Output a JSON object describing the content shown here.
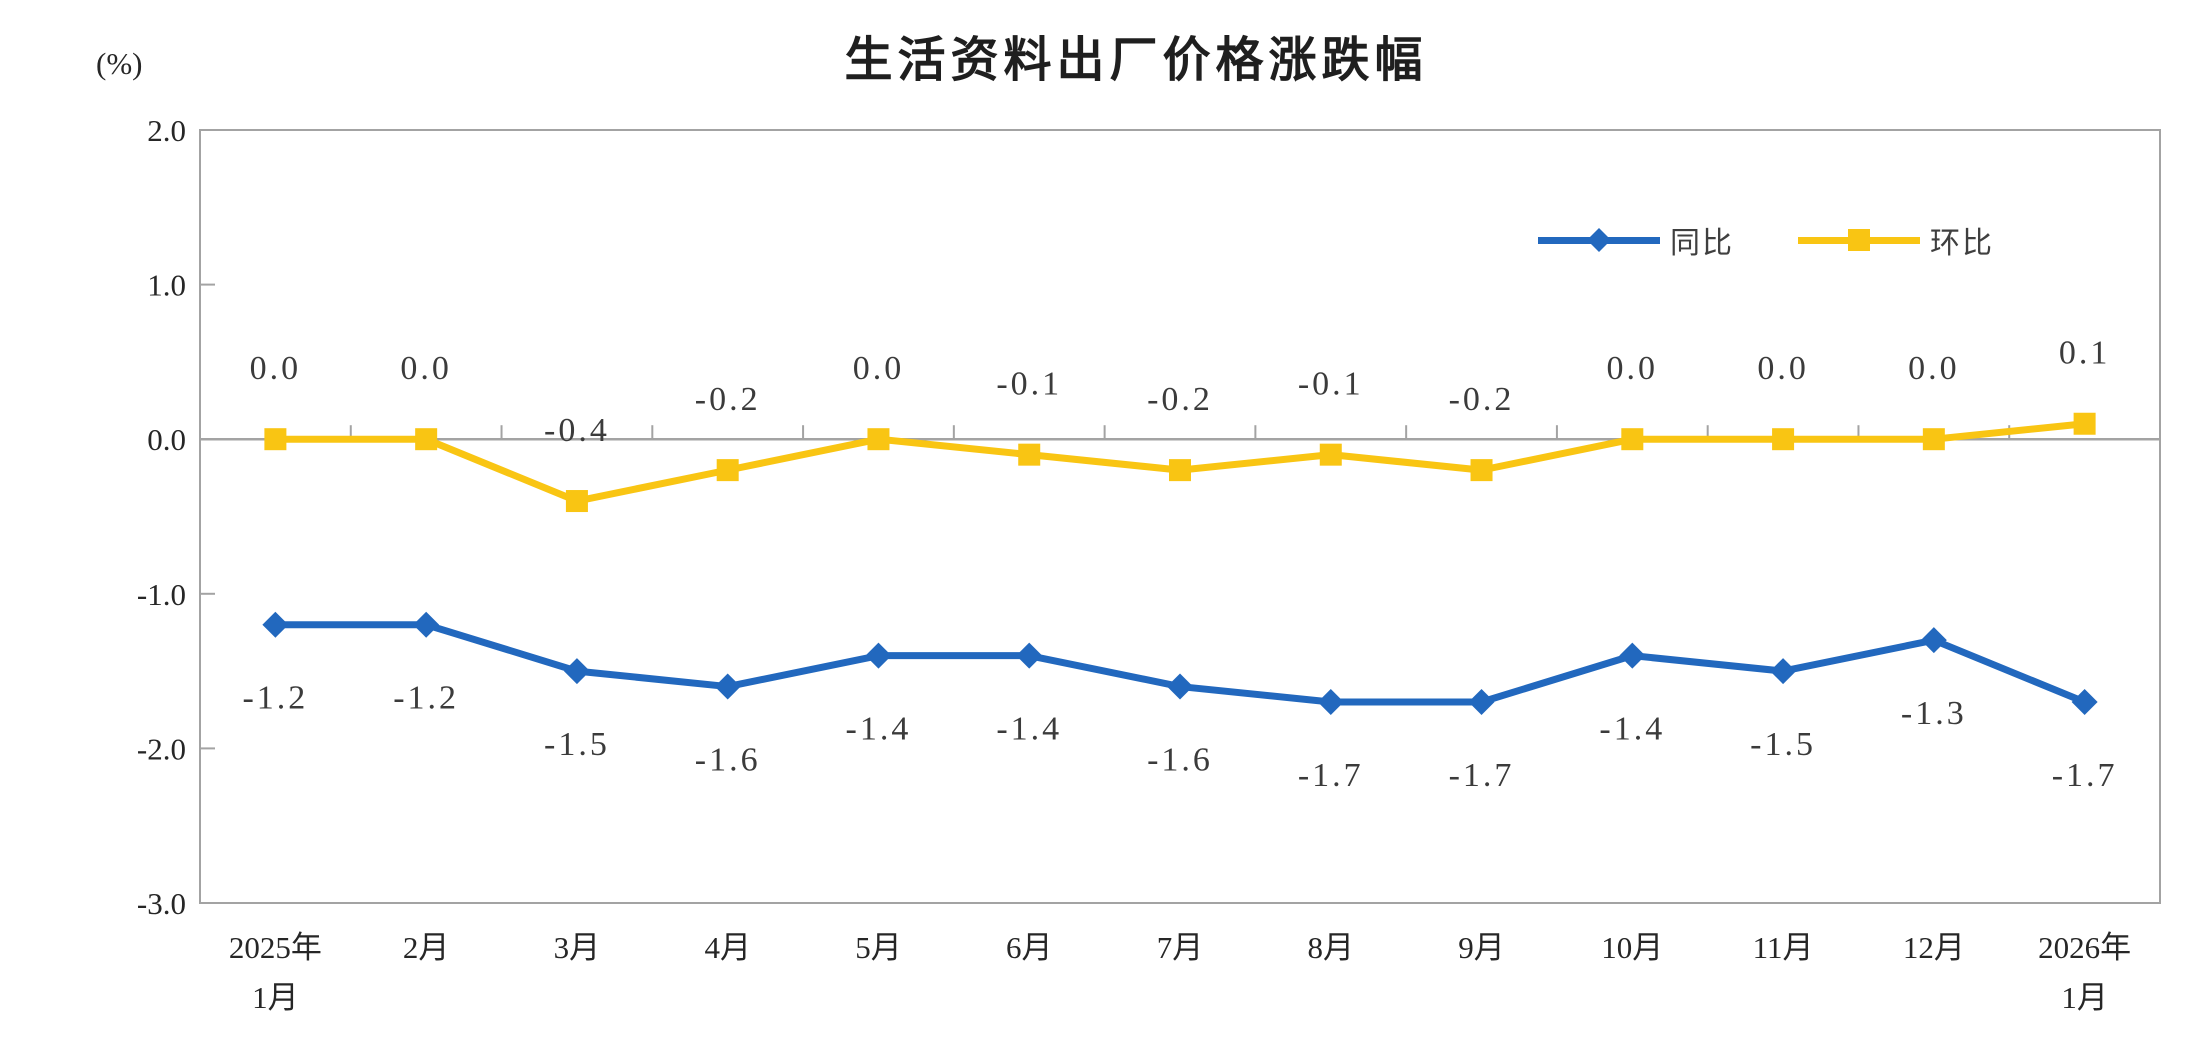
{
  "title": "生活资料出厂价格涨跌幅",
  "unit_label": "(%)",
  "legend": {
    "yoy": "同比",
    "mom": "环比"
  },
  "colors": {
    "yoy_blue": "#2268BE",
    "mom_yellow": "#F9C513",
    "axis_gray": "#A3A3A3",
    "tick_text": "#262626",
    "data_label_text": "#3B3B3B"
  },
  "chart_data": {
    "type": "line",
    "title": "生活资料出厂价格涨跌幅",
    "unit": "(%)",
    "categories": [
      [
        "2025年",
        "1月"
      ],
      [
        "2月"
      ],
      [
        "3月"
      ],
      [
        "4月"
      ],
      [
        "5月"
      ],
      [
        "6月"
      ],
      [
        "7月"
      ],
      [
        "8月"
      ],
      [
        "9月"
      ],
      [
        "10月"
      ],
      [
        "11月"
      ],
      [
        "12月"
      ],
      [
        "2026年",
        "1月"
      ]
    ],
    "series": [
      {
        "name": "同比",
        "key": "yoy",
        "color": "#2268BE",
        "marker": "diamond",
        "label_position": "below",
        "values": [
          -1.2,
          -1.2,
          -1.5,
          -1.6,
          -1.4,
          -1.4,
          -1.6,
          -1.7,
          -1.7,
          -1.4,
          -1.5,
          -1.3,
          -1.7
        ],
        "labels": [
          "-1.2",
          "-1.2",
          "-1.5",
          "-1.6",
          "-1.4",
          "-1.4",
          "-1.6",
          "-1.7",
          "-1.7",
          "-1.4",
          "-1.5",
          "-1.3",
          "-1.7"
        ]
      },
      {
        "name": "环比",
        "key": "mom",
        "color": "#F9C513",
        "marker": "square",
        "label_position": "above",
        "values": [
          0.0,
          0.0,
          -0.4,
          -0.2,
          0.0,
          -0.1,
          -0.2,
          -0.1,
          -0.2,
          0.0,
          0.0,
          0.0,
          0.1
        ],
        "labels": [
          "0.0",
          "0.0",
          "-0.4",
          "-0.2",
          "0.0",
          "-0.1",
          "-0.2",
          "-0.1",
          "-0.2",
          "0.0",
          "0.0",
          "0.0",
          "0.1"
        ]
      }
    ],
    "y_axis": {
      "min": -3.0,
      "max": 2.0,
      "tick_values": [
        2.0,
        1.0,
        0.0,
        -1.0,
        -2.0,
        -3.0
      ],
      "tick_labels": [
        "2.0",
        "1.0",
        "0.0",
        "-1.0",
        "-2.0",
        "-3.0"
      ]
    },
    "grid": false,
    "legend_position": "top-right-inside"
  }
}
